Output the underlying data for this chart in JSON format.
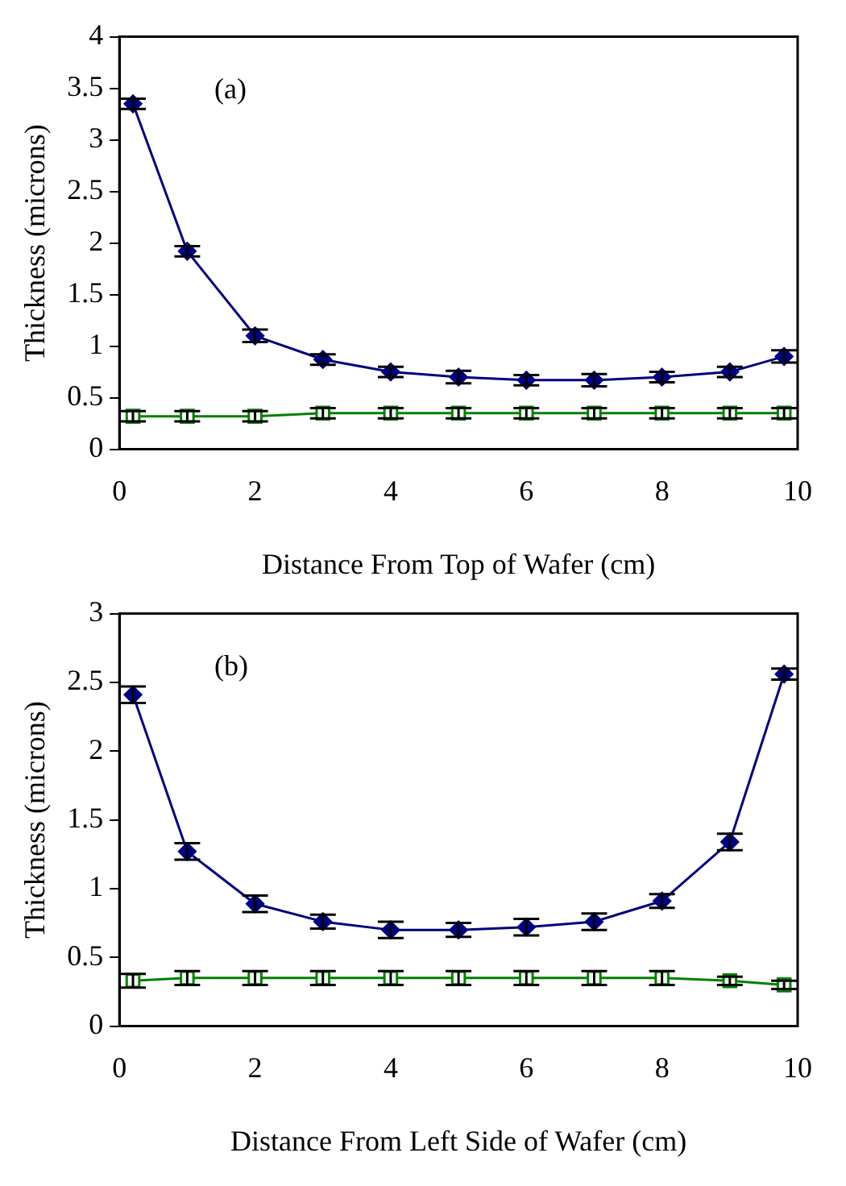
{
  "chart_data": [
    {
      "type": "line",
      "annotations": [
        "(a)"
      ],
      "xlabel": "Distance From Top of Wafer (cm)",
      "ylabel": "Thickness (microns)",
      "xlim": [
        0,
        10
      ],
      "xticks": [
        0,
        2,
        4,
        6,
        8,
        10
      ],
      "ylim": [
        0,
        4
      ],
      "yticks": [
        0,
        0.5,
        1,
        1.5,
        2,
        2.5,
        3,
        3.5,
        4
      ],
      "grid": false,
      "legend": false,
      "x": [
        0.2,
        1,
        2,
        3,
        4,
        5,
        6,
        7,
        8,
        9,
        9.8
      ],
      "series": [
        {
          "color": "#000080",
          "marker": "diamond",
          "values": [
            3.35,
            1.92,
            1.1,
            0.87,
            0.75,
            0.7,
            0.67,
            0.67,
            0.7,
            0.75,
            0.9
          ],
          "errors": [
            0.05,
            0.05,
            0.06,
            0.05,
            0.05,
            0.06,
            0.05,
            0.06,
            0.05,
            0.05,
            0.06
          ]
        },
        {
          "color": "#008000",
          "marker": "square",
          "values": [
            0.32,
            0.32,
            0.32,
            0.35,
            0.35,
            0.35,
            0.35,
            0.35,
            0.35,
            0.35,
            0.35
          ],
          "errors": [
            0.05,
            0.05,
            0.05,
            0.05,
            0.05,
            0.05,
            0.05,
            0.05,
            0.05,
            0.05,
            0.05
          ]
        }
      ]
    },
    {
      "type": "line",
      "annotations": [
        "(b)"
      ],
      "xlabel": "Distance From Left Side of Wafer (cm)",
      "ylabel": "Thickness (microns)",
      "xlim": [
        0,
        10
      ],
      "xticks": [
        0,
        2,
        4,
        6,
        8,
        10
      ],
      "ylim": [
        0,
        3
      ],
      "yticks": [
        0,
        0.5,
        1,
        1.5,
        2,
        2.5,
        3
      ],
      "grid": false,
      "legend": false,
      "x": [
        0.2,
        1,
        2,
        3,
        4,
        5,
        6,
        7,
        8,
        9,
        9.8
      ],
      "series": [
        {
          "color": "#000080",
          "marker": "diamond",
          "values": [
            2.41,
            1.27,
            0.89,
            0.76,
            0.7,
            0.7,
            0.72,
            0.76,
            0.91,
            1.34,
            2.56
          ],
          "errors": [
            0.06,
            0.06,
            0.06,
            0.05,
            0.06,
            0.05,
            0.06,
            0.06,
            0.05,
            0.06,
            0.04
          ]
        },
        {
          "color": "#008000",
          "marker": "square",
          "values": [
            0.33,
            0.35,
            0.35,
            0.35,
            0.35,
            0.35,
            0.35,
            0.35,
            0.35,
            0.33,
            0.3
          ],
          "errors": [
            0.05,
            0.05,
            0.05,
            0.05,
            0.05,
            0.05,
            0.05,
            0.05,
            0.05,
            0.03,
            0.03
          ]
        }
      ]
    }
  ]
}
